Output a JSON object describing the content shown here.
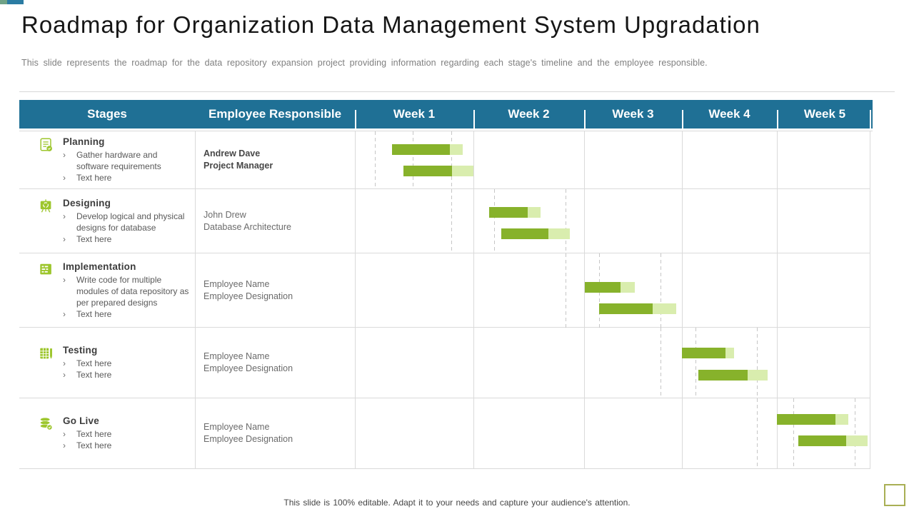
{
  "slide": {
    "title": "Roadmap for Organization Data Management System Upgradation",
    "subtitle": "This slide represents the roadmap for the data repository expansion project providing  information  regarding  each stage's timeline and the employee responsible.",
    "footer": "This slide is 100% editable. Adapt it to your needs and capture your audience's attention."
  },
  "colors": {
    "header_bg": "#1F7095",
    "accent_teal": "#2B7CA3",
    "icon_green": "#9DC62D",
    "bar_dark": "#87B22B",
    "bar_light": "#D9EDAE",
    "grid": "#DADADA"
  },
  "table": {
    "bullet_marker": "›",
    "columns": [
      "Stages",
      "Employee Responsible",
      "Week 1",
      "Week 2",
      "Week 3",
      "Week 4",
      "Week 5"
    ],
    "rows": [
      {
        "icon": "clipboard-check-icon",
        "stage": "Planning",
        "bullets": [
          "Gather hardware and software requirements",
          "Text here"
        ],
        "employee_name": "Andrew Dave",
        "employee_title": "Project Manager"
      },
      {
        "icon": "design-easel-icon",
        "stage": "Designing",
        "bullets": [
          "Develop logical and physical designs for database",
          "Text here"
        ],
        "employee_name": "John Drew",
        "employee_title": "Database Architecture"
      },
      {
        "icon": "code-window-icon",
        "stage": "Implementation",
        "bullets": [
          "Write code for multiple modules of data repository as per prepared designs",
          "Text here"
        ],
        "employee_name": "Employee Name",
        "employee_title": "Employee Designation"
      },
      {
        "icon": "test-checklist-icon",
        "stage": "Testing",
        "bullets": [
          "Text here",
          "Text here"
        ],
        "employee_name": "Employee Name",
        "employee_title": "Employee Designation"
      },
      {
        "icon": "database-golive-icon",
        "stage": "Go Live",
        "bullets": [
          "Text here",
          "Text here"
        ],
        "employee_name": "Employee Name",
        "employee_title": "Employee Designation"
      }
    ]
  },
  "chart_data": {
    "type": "gantt",
    "x_units": "weeks",
    "weeks": [
      "Week 1",
      "Week 2",
      "Week 3",
      "Week 4",
      "Week 5"
    ],
    "legend": "two bars per stage; solid green = main duration, pale green = trailing extension",
    "bars": [
      {
        "stage": "Planning",
        "row": 0,
        "lane": 0,
        "start": 1.31,
        "solid_end": 1.8,
        "end": 1.91
      },
      {
        "stage": "Planning",
        "row": 0,
        "lane": 1,
        "start": 1.41,
        "solid_end": 1.82,
        "end": 2.0
      },
      {
        "stage": "Designing",
        "row": 1,
        "lane": 0,
        "start": 2.14,
        "solid_end": 2.49,
        "end": 2.61
      },
      {
        "stage": "Designing",
        "row": 1,
        "lane": 1,
        "start": 2.25,
        "solid_end": 2.68,
        "end": 2.87
      },
      {
        "stage": "Implementation",
        "row": 2,
        "lane": 0,
        "start": 3.01,
        "solid_end": 3.37,
        "end": 3.52
      },
      {
        "stage": "Implementation",
        "row": 2,
        "lane": 1,
        "start": 3.15,
        "solid_end": 3.7,
        "end": 3.94
      },
      {
        "stage": "Testing",
        "row": 3,
        "lane": 0,
        "start": 4.0,
        "solid_end": 4.46,
        "end": 4.55
      },
      {
        "stage": "Testing",
        "row": 3,
        "lane": 1,
        "start": 4.17,
        "solid_end": 4.69,
        "end": 4.9
      },
      {
        "stage": "Go Live",
        "row": 4,
        "lane": 0,
        "start": 5.0,
        "solid_end": 5.63,
        "end": 5.77
      },
      {
        "stage": "Go Live",
        "row": 4,
        "lane": 1,
        "start": 5.23,
        "solid_end": 5.75,
        "end": 5.98
      }
    ],
    "guides": [
      {
        "row": 0,
        "weeks": [
          1.17,
          1.49,
          1.81
        ]
      },
      {
        "row": 1,
        "weeks": [
          1.81,
          2.19,
          2.83
        ]
      },
      {
        "row": 2,
        "weeks": [
          2.83,
          3.15,
          3.78
        ]
      },
      {
        "row": 3,
        "weeks": [
          3.78,
          4.14,
          4.79
        ]
      },
      {
        "row": 4,
        "weeks": [
          4.79,
          5.18,
          5.84
        ]
      }
    ]
  }
}
